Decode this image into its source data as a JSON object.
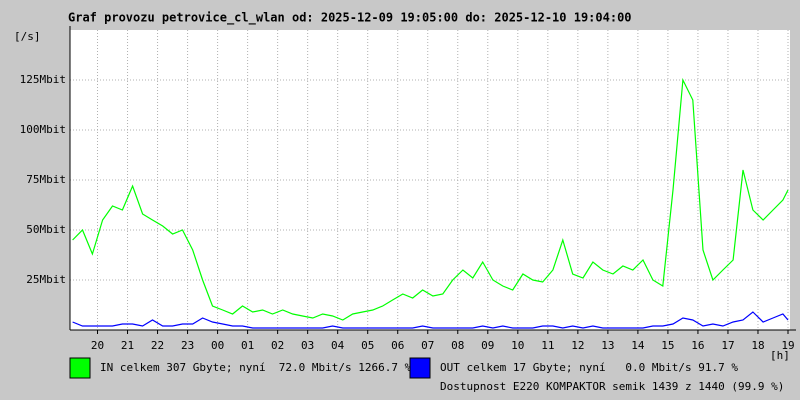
{
  "chart_data": {
    "type": "line",
    "title": "Graf provozu petrovice_cl_wlan od: 2025-12-09 19:05:00 do: 2025-12-10 19:04:00",
    "y_label": "[/s]",
    "x_label": "[h]",
    "annotation": "Dostupnost E220 KOMPAKTOR semik 1439 z 1440 (99.9 %)",
    "annotation_color": "#ff0000",
    "grid": true,
    "xlim": [
      19.0833,
      43.0667
    ],
    "xticks": [
      {
        "value": 20,
        "label": "20"
      },
      {
        "value": 21,
        "label": "21"
      },
      {
        "value": 22,
        "label": "22"
      },
      {
        "value": 23,
        "label": "23"
      },
      {
        "value": 24,
        "label": "00"
      },
      {
        "value": 25,
        "label": "01"
      },
      {
        "value": 26,
        "label": "02"
      },
      {
        "value": 27,
        "label": "03"
      },
      {
        "value": 28,
        "label": "04"
      },
      {
        "value": 29,
        "label": "05"
      },
      {
        "value": 30,
        "label": "06"
      },
      {
        "value": 31,
        "label": "07"
      },
      {
        "value": 32,
        "label": "08"
      },
      {
        "value": 33,
        "label": "09"
      },
      {
        "value": 34,
        "label": "10"
      },
      {
        "value": 35,
        "label": "11"
      },
      {
        "value": 36,
        "label": "12"
      },
      {
        "value": 37,
        "label": "13"
      },
      {
        "value": 38,
        "label": "14"
      },
      {
        "value": 39,
        "label": "15"
      },
      {
        "value": 40,
        "label": "16"
      },
      {
        "value": 41,
        "label": "17"
      },
      {
        "value": 42,
        "label": "18"
      },
      {
        "value": 43,
        "label": "19"
      }
    ],
    "ylim": [
      0,
      150
    ],
    "yticks": [
      {
        "value": 25,
        "label": "25Mbit"
      },
      {
        "value": 50,
        "label": "50Mbit"
      },
      {
        "value": 75,
        "label": "75Mbit"
      },
      {
        "value": 100,
        "label": "100Mbit"
      },
      {
        "value": 125,
        "label": "125Mbit"
      }
    ],
    "x": [
      19.17,
      19.5,
      19.83,
      20.17,
      20.5,
      20.83,
      21.17,
      21.5,
      21.83,
      22.17,
      22.5,
      22.83,
      23.17,
      23.5,
      23.83,
      24.17,
      24.5,
      24.83,
      25.17,
      25.5,
      25.83,
      26.17,
      26.5,
      26.83,
      27.17,
      27.5,
      27.83,
      28.17,
      28.5,
      28.83,
      29.17,
      29.5,
      29.83,
      30.17,
      30.5,
      30.83,
      31.17,
      31.5,
      31.83,
      32.17,
      32.5,
      32.83,
      33.17,
      33.5,
      33.83,
      34.17,
      34.5,
      34.83,
      35.17,
      35.5,
      35.83,
      36.17,
      36.5,
      36.83,
      37.17,
      37.5,
      37.83,
      38.17,
      38.5,
      38.83,
      39.17,
      39.5,
      39.83,
      40.17,
      40.5,
      40.83,
      41.17,
      41.5,
      41.83,
      42.17,
      42.5,
      42.83,
      43.0
    ],
    "series": [
      {
        "name": "IN celkem 307 Gbyte; nyní  72.0 Mbit/s 1266.7 %",
        "color": "#00ff00",
        "values": [
          45,
          50,
          38,
          55,
          62,
          60,
          72,
          58,
          55,
          52,
          48,
          50,
          40,
          25,
          12,
          10,
          8,
          12,
          9,
          10,
          8,
          10,
          8,
          7,
          6,
          8,
          7,
          5,
          8,
          9,
          10,
          12,
          15,
          18,
          16,
          20,
          17,
          18,
          25,
          30,
          26,
          34,
          25,
          22,
          20,
          28,
          25,
          24,
          30,
          45,
          28,
          26,
          34,
          30,
          28,
          32,
          30,
          35,
          25,
          22,
          70,
          125,
          115,
          40,
          25,
          30,
          35,
          80,
          60,
          55,
          60,
          65,
          70
        ]
      },
      {
        "name": "OUT celkem 17 Gbyte; nyní   0.0 Mbit/s 91.7 %",
        "color": "#0000ff",
        "values": [
          4,
          2,
          2,
          2,
          2,
          3,
          3,
          2,
          5,
          2,
          2,
          3,
          3,
          6,
          4,
          3,
          2,
          2,
          1,
          1,
          1,
          1,
          1,
          1,
          1,
          1,
          2,
          1,
          1,
          1,
          1,
          1,
          1,
          1,
          1,
          2,
          1,
          1,
          1,
          1,
          1,
          2,
          1,
          2,
          1,
          1,
          1,
          2,
          2,
          1,
          2,
          1,
          2,
          1,
          1,
          1,
          1,
          1,
          2,
          2,
          3,
          6,
          5,
          2,
          3,
          2,
          4,
          5,
          9,
          4,
          6,
          8,
          5
        ]
      }
    ]
  }
}
